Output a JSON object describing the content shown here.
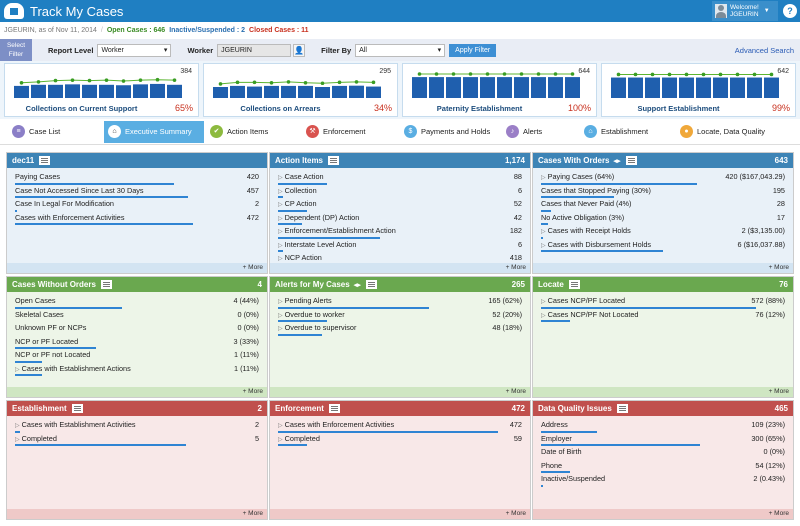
{
  "app": {
    "title": "Track My Cases",
    "welcome": "Welcome!",
    "user": "JGEURIN",
    "help": "?"
  },
  "subheader": {
    "as_of": "JGEURIN, as of Nov 11, 2014",
    "sep": "/",
    "open": "Open Cases : 646",
    "inactive": "Inactive/Suspended : 2",
    "closed": "Closed Cases : 11"
  },
  "filter": {
    "select_filter": "Select Filter",
    "report_level_label": "Report Level",
    "report_level_value": "Worker",
    "worker_label": "Worker",
    "worker_value": "JGEURIN",
    "filter_by_label": "Filter By",
    "filter_by_value": "All",
    "apply": "Apply Filter",
    "advanced": "Advanced Search"
  },
  "kpis": [
    {
      "name": "Collections on Current Support",
      "top": "384",
      "pct": "65%",
      "pct_color": "red",
      "bars": [
        0.55,
        0.6,
        0.6,
        0.62,
        0.6,
        0.6,
        0.58,
        0.62,
        0.64,
        0.6
      ],
      "line": [
        0.6,
        0.64,
        0.7,
        0.72,
        0.7,
        0.72,
        0.68,
        0.72,
        0.74,
        0.72
      ]
    },
    {
      "name": "Collections on Arrears",
      "top": "295",
      "pct": "34%",
      "pct_color": "red",
      "bars": [
        0.5,
        0.55,
        0.52,
        0.55,
        0.55,
        0.55,
        0.5,
        0.55,
        0.56,
        0.52
      ],
      "line": [
        0.55,
        0.62,
        0.62,
        0.6,
        0.64,
        0.6,
        0.58,
        0.62,
        0.64,
        0.62
      ]
    },
    {
      "name": "Paternity Establishment",
      "top": "644",
      "pct": "100%",
      "pct_color": "red",
      "bars": [
        0.95,
        0.95,
        0.95,
        0.95,
        0.95,
        0.95,
        0.95,
        0.95,
        0.95,
        0.95
      ],
      "line": [
        1,
        1,
        1,
        1,
        1,
        1,
        1,
        1,
        1,
        1
      ]
    },
    {
      "name": "Support Establishment",
      "top": "642",
      "pct": "99%",
      "pct_color": "red",
      "bars": [
        0.93,
        0.93,
        0.93,
        0.93,
        0.93,
        0.93,
        0.93,
        0.93,
        0.93,
        0.93
      ],
      "line": [
        0.98,
        0.98,
        0.98,
        0.98,
        0.98,
        0.98,
        0.98,
        0.98,
        0.98,
        0.98
      ]
    }
  ],
  "tabs": [
    {
      "label": "Case List",
      "color": "#8b7fc7",
      "icon": "list-icon",
      "glyph": "≡"
    },
    {
      "label": "Executive Summary",
      "color": "#ffffff",
      "icon": "home-icon",
      "glyph": "⌂",
      "active": true
    },
    {
      "label": "Action Items",
      "color": "#8dba3f",
      "icon": "check-icon",
      "glyph": "✔"
    },
    {
      "label": "Enforcement",
      "color": "#d9534f",
      "icon": "gavel-icon",
      "glyph": "⚒"
    },
    {
      "label": "Payments and Holds",
      "color": "#5aaee2",
      "icon": "money-icon",
      "glyph": "$"
    },
    {
      "label": "Alerts",
      "color": "#9b7fc7",
      "icon": "bell-icon",
      "glyph": "♪"
    },
    {
      "label": "Establishment",
      "color": "#5aaee2",
      "icon": "building-icon",
      "glyph": "⌂"
    },
    {
      "label": "Locate, Data Quality",
      "color": "#f0a83a",
      "icon": "pin-icon",
      "glyph": "●"
    }
  ],
  "more": "+ More",
  "panels": [
    {
      "title": "dec11",
      "count": "",
      "theme": "blue",
      "rows": [
        {
          "label": "Paying Cases",
          "value": "420",
          "bar": 0.65
        },
        {
          "label": "Case Not Accessed Since Last 30 Days",
          "value": "457",
          "bar": 0.71
        },
        {
          "label": "Case In Legal For Modification",
          "value": "2",
          "bar": 0.01
        },
        {
          "label": "Cases with Enforcement Activities",
          "value": "472",
          "bar": 0.73
        }
      ]
    },
    {
      "title": "Action Items",
      "count": "1,174",
      "theme": "blue",
      "rows": [
        {
          "label": "Case Action",
          "value": "88",
          "bar": 0.2,
          "ex": true
        },
        {
          "label": "Collection",
          "value": "6",
          "bar": 0.02,
          "ex": true
        },
        {
          "label": "CP Action",
          "value": "52",
          "bar": 0.12,
          "ex": true
        },
        {
          "label": "Dependent (DP) Action",
          "value": "42",
          "bar": 0.1,
          "ex": true
        },
        {
          "label": "Enforcement/Establishment Action",
          "value": "182",
          "bar": 0.42,
          "ex": true
        },
        {
          "label": "Interstate Level Action",
          "value": "6",
          "bar": 0.02,
          "ex": true
        },
        {
          "label": "NCP Action",
          "value": "418",
          "bar": 0.96,
          "ex": true
        }
      ]
    },
    {
      "title": "Cases With Orders",
      "count": "643",
      "theme": "blue",
      "arrows": true,
      "rows": [
        {
          "label": "Paying Cases (64%)",
          "value": "420 ($167,043.29)",
          "bar": 0.64,
          "ex": true
        },
        {
          "label": "Cases that Stopped Paying (30%)",
          "value": "195",
          "bar": 0.3
        },
        {
          "label": "Cases that Never Paid (4%)",
          "value": "28",
          "bar": 0.04
        },
        {
          "label": "No Active Obligation (3%)",
          "value": "17",
          "bar": 0.03
        },
        {
          "label": "Cases with Receipt Holds",
          "value": "2 ($3,135.00)",
          "bar": 0.01,
          "ex": true
        },
        {
          "label": "Cases with Disbursement Holds",
          "value": "6 ($16,037.88)",
          "bar": 0.5,
          "ex": true
        }
      ]
    },
    {
      "title": "Cases Without Orders",
      "count": "4",
      "theme": "green",
      "rows": [
        {
          "label": "Open Cases",
          "value": "4 (44%)",
          "bar": 0.44
        },
        {
          "label": "Skeletal Cases",
          "value": "0 (0%)",
          "bar": 0
        },
        {
          "label": "Unknown PF or NCPs",
          "value": "0 (0%)",
          "bar": 0
        },
        {
          "label": "NCP or PF Located",
          "value": "3 (33%)",
          "bar": 0.33
        },
        {
          "label": "NCP or PF not Located",
          "value": "1 (11%)",
          "bar": 0.11
        },
        {
          "label": "Cases with Establishment Actions",
          "value": "1 (11%)",
          "bar": 0.11,
          "ex": true
        }
      ]
    },
    {
      "title": "Alerts for My Cases",
      "count": "265",
      "theme": "green",
      "arrows": true,
      "rows": [
        {
          "label": "Pending Alerts",
          "value": "165 (62%)",
          "bar": 0.62,
          "ex": true
        },
        {
          "label": "Overdue to worker",
          "value": "52 (20%)",
          "bar": 0.2,
          "ex": true
        },
        {
          "label": "Overdue to supervisor",
          "value": "48 (18%)",
          "bar": 0.18,
          "ex": true
        }
      ]
    },
    {
      "title": "Locate",
      "count": "76",
      "theme": "green",
      "rows": [
        {
          "label": "Cases NCP/PF Located",
          "value": "572 (88%)",
          "bar": 0.88,
          "ex": true
        },
        {
          "label": "Cases NCP/PF Not Located",
          "value": "76 (12%)",
          "bar": 0.12,
          "ex": true
        }
      ]
    },
    {
      "title": "Establishment",
      "count": "2",
      "theme": "red",
      "rows": [
        {
          "label": "Cases with Establishment Activities",
          "value": "2",
          "bar": 0.02,
          "ex": true
        },
        {
          "label": "Completed",
          "value": "5",
          "bar": 0.7,
          "ex": true
        }
      ]
    },
    {
      "title": "Enforcement",
      "count": "472",
      "theme": "red",
      "rows": [
        {
          "label": "Cases with Enforcement Activities",
          "value": "472",
          "bar": 0.9,
          "ex": true
        },
        {
          "label": "Completed",
          "value": "59",
          "bar": 0.12,
          "ex": true
        }
      ]
    },
    {
      "title": "Data Quality Issues",
      "count": "465",
      "theme": "red",
      "rows": [
        {
          "label": "Address",
          "value": "109 (23%)",
          "bar": 0.23
        },
        {
          "label": "Employer",
          "value": "300 (65%)",
          "bar": 0.65
        },
        {
          "label": "Date of Birth",
          "value": "0 (0%)",
          "bar": 0
        },
        {
          "label": "Phone",
          "value": "54 (12%)",
          "bar": 0.12
        },
        {
          "label": "Inactive/Suspended",
          "value": "2 (0.43%)",
          "bar": 0.01
        }
      ]
    }
  ]
}
